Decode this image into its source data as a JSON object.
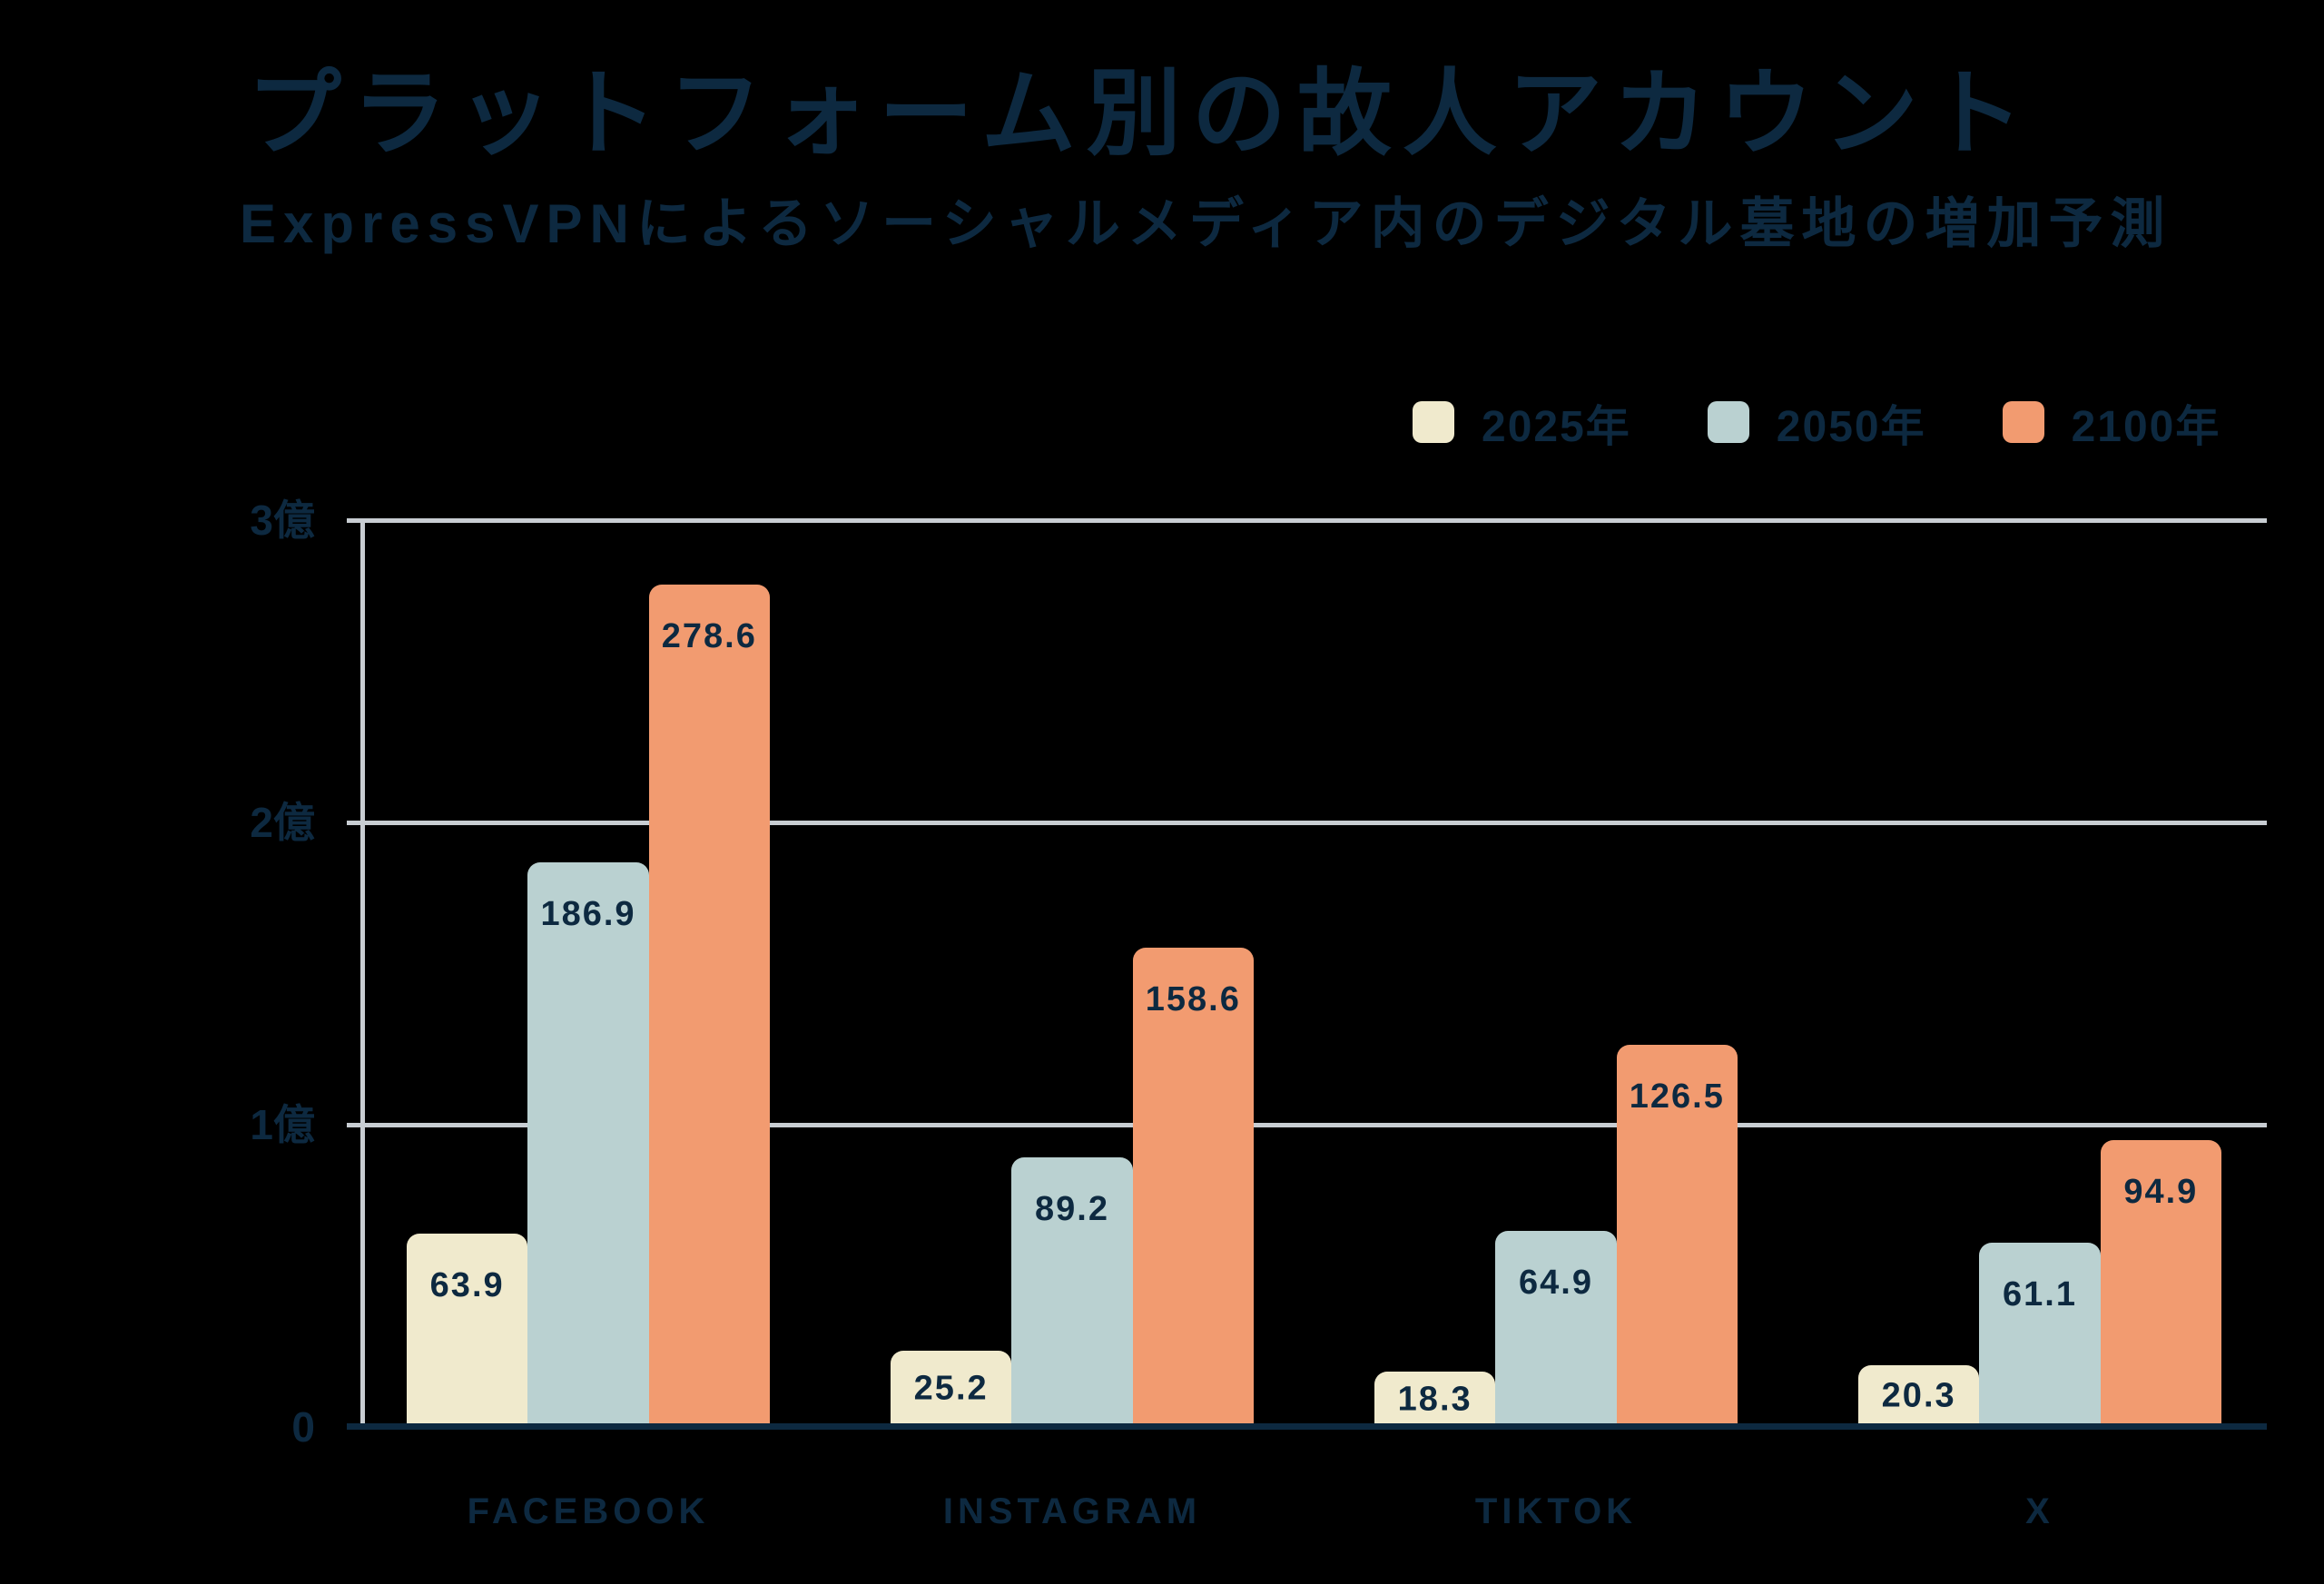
{
  "header": {
    "title": "プラットフォーム別の故人アカウント",
    "subtitle": "ExpressVPNによるソーシャルメディア内のデジタル墓地の増加予測"
  },
  "colors": {
    "background": "#000000",
    "text_navy": "#0D2940",
    "gridline": "#C8CDD2",
    "series_2025": "#F0EACD",
    "series_2050": "#BAD1D1",
    "series_2100": "#F29B70"
  },
  "chart_data": {
    "type": "bar",
    "title": "プラットフォーム別の故人アカウント",
    "subtitle": "ExpressVPNによるソーシャルメディア内のデジタル墓地の増加予測",
    "categories": [
      "FACEBOOK",
      "INSTAGRAM",
      "TIKTOK",
      "X"
    ],
    "series": [
      {
        "name": "2025年",
        "color": "#F0EACD",
        "values": [
          63.9,
          25.2,
          18.3,
          20.3
        ]
      },
      {
        "name": "2050年",
        "color": "#BAD1D1",
        "values": [
          186.9,
          89.2,
          64.9,
          61.1
        ]
      },
      {
        "name": "2100年",
        "color": "#F29B70",
        "values": [
          278.6,
          158.6,
          126.5,
          94.9
        ]
      }
    ],
    "value_unit": "百万",
    "ylim": [
      0,
      300
    ],
    "yticks": [
      {
        "value": 0,
        "label": "0"
      },
      {
        "value": 100,
        "label": "1億"
      },
      {
        "value": 200,
        "label": "2億"
      },
      {
        "value": 300,
        "label": "3億"
      }
    ],
    "grid": true,
    "legend_position": "top-right"
  }
}
